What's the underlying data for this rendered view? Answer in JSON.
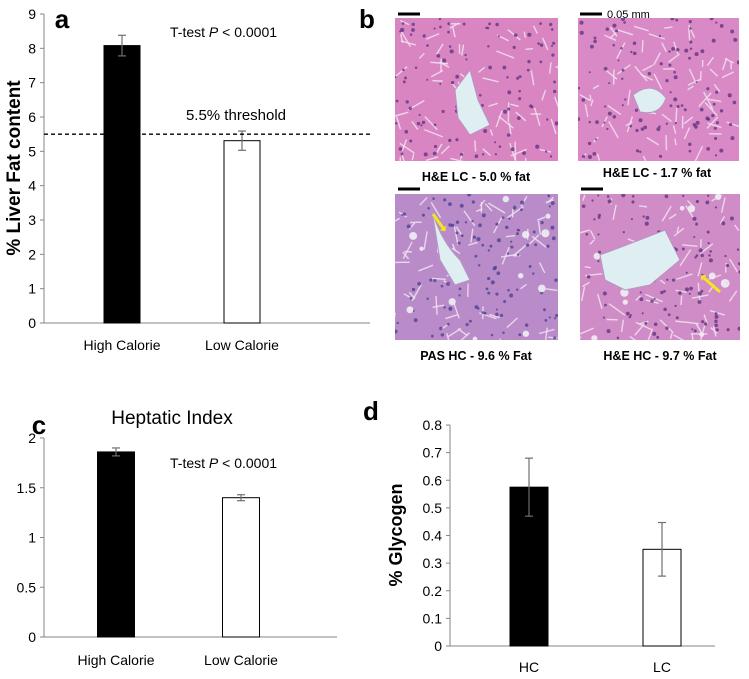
{
  "chart_data": [
    {
      "panel": "a",
      "type": "bar",
      "categories": [
        "High Calorie",
        "Low Calorie"
      ],
      "values": [
        8.08,
        5.31
      ],
      "errors": [
        0.3,
        0.28
      ],
      "ylabel": "% Liver Fat content",
      "ylim": [
        0,
        9
      ],
      "yticks": [
        "0",
        "1",
        "2",
        "3",
        "4",
        "5",
        "6",
        "7",
        "8",
        "9"
      ],
      "fills": [
        "#000000",
        "#ffffff"
      ],
      "reference_line": {
        "value": 5.5,
        "label": "5.5% threshold"
      },
      "annotation": {
        "prefix": "T-test ",
        "italic": "P",
        "suffix": " < 0.0001"
      }
    },
    {
      "panel": "c",
      "type": "bar",
      "title": "Heptatic Index",
      "categories": [
        "High Calorie",
        "Low Calorie"
      ],
      "values": [
        1.86,
        1.4
      ],
      "errors": [
        0.04,
        0.03
      ],
      "ylim": [
        0,
        2
      ],
      "yticks": [
        "0",
        "0.5",
        "1",
        "1.5",
        "2"
      ],
      "fills": [
        "#000000",
        "#ffffff"
      ],
      "annotation": {
        "prefix": "T-test ",
        "italic": "P",
        "suffix": " < 0.0001"
      }
    },
    {
      "panel": "d",
      "type": "bar",
      "categories": [
        "HC",
        "LC"
      ],
      "values": [
        0.575,
        0.35
      ],
      "errors": [
        0.105,
        0.097
      ],
      "ylabel": "% Glycogen",
      "ylim": [
        0,
        0.8
      ],
      "yticks": [
        "0",
        "0.1",
        "0.2",
        "0.3",
        "0.4",
        "0.5",
        "0.6",
        "0.7",
        "0.8"
      ],
      "fills": [
        "#000000",
        "#ffffff"
      ]
    }
  ],
  "panel_b": {
    "letter": "b",
    "scale_label": "0.05 mm",
    "images": [
      {
        "caption": "H&E LC - 5.0 % fat",
        "base_color": "#d985c2",
        "stain": "he",
        "arrow": false
      },
      {
        "caption": "H&E LC - 1.7 % fat",
        "base_color": "#d98ac6",
        "stain": "he",
        "arrow": false
      },
      {
        "caption": "PAS HC - 9.6 % Fat",
        "base_color": "#b98cc9",
        "stain": "pas",
        "arrow": true
      },
      {
        "caption": "H&E HC - 9.7 % Fat",
        "base_color": "#d08cc6",
        "stain": "he",
        "arrow": true
      }
    ],
    "arrow_color": "#f4e51c"
  },
  "colors": {
    "axis": "#868686",
    "error_bar": "#6f6f6f",
    "bar_stroke": "#000000"
  }
}
